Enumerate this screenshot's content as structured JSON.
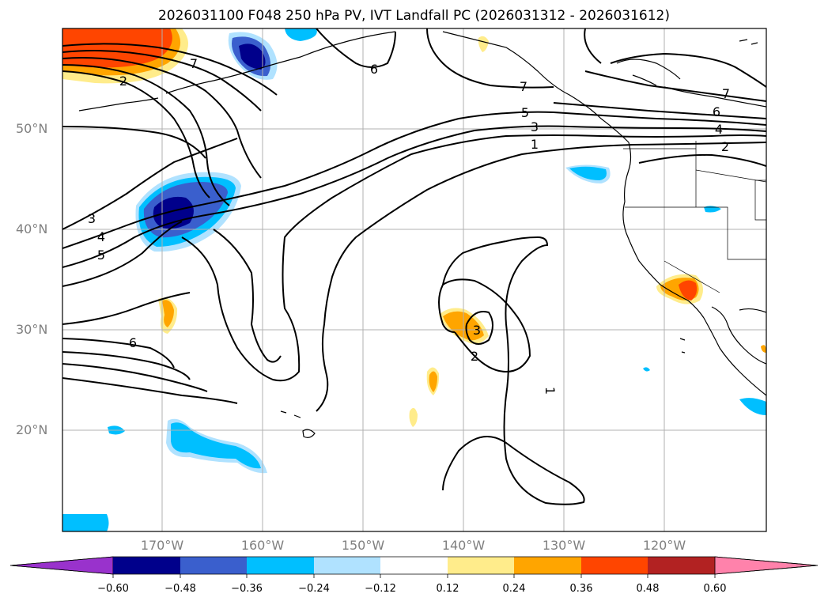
{
  "title": "2026031100 F048 250 hPa PV, IVT Landfall PC (2026031312 - 2026031612)",
  "lat_labels": [
    "50°N",
    "40°N",
    "30°N",
    "20°N"
  ],
  "lon_labels": [
    "170°W",
    "160°W",
    "150°W",
    "140°W",
    "130°W",
    "120°W"
  ],
  "contour_labels": [
    "7",
    "6",
    "7",
    "5",
    "3",
    "1",
    "7",
    "6",
    "4",
    "2",
    "3",
    "4",
    "5",
    "6",
    "3",
    "2",
    "1",
    "2"
  ],
  "colorbar": {
    "ticks": [
      "−0.60",
      "−0.48",
      "−0.36",
      "−0.24",
      "−0.12",
      "0.12",
      "0.24",
      "0.36",
      "0.48",
      "0.60"
    ],
    "colors": [
      "#9932cc",
      "#00008b",
      "#3a5fcd",
      "#00bfff",
      "#b0e2ff",
      "#ffffff",
      "#ffec8b",
      "#ffa500",
      "#ff4500",
      "#b22222",
      "#ff82ab"
    ]
  }
}
